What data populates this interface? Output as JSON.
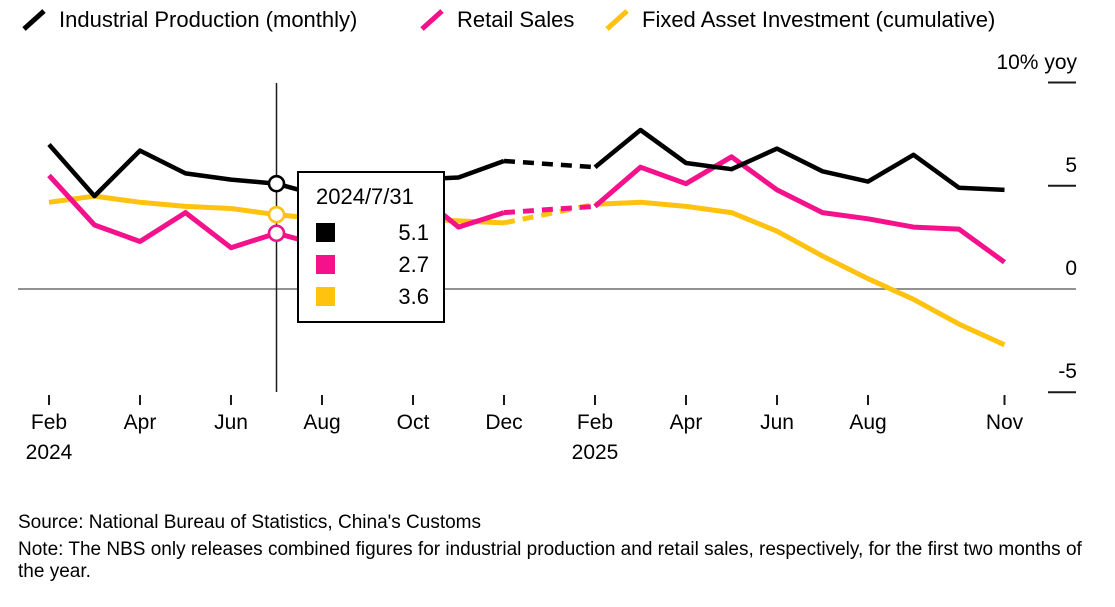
{
  "legend": {
    "items": [
      {
        "label": "Industrial Production (monthly)",
        "color": "#000000"
      },
      {
        "label": "Retail Sales",
        "color": "#f4118b"
      },
      {
        "label": "Fixed Asset Investment (cumulative)",
        "color": "#ffc20e"
      }
    ]
  },
  "tooltip": {
    "date": "2024/7/31",
    "rows": [
      {
        "series": "Industrial Production (monthly)",
        "color": "#000000",
        "value": "5.1"
      },
      {
        "series": "Retail Sales",
        "color": "#f4118b",
        "value": "2.7"
      },
      {
        "series": "Fixed Asset Investment (cumulative)",
        "color": "#ffc20e",
        "value": "3.6"
      }
    ]
  },
  "footer": {
    "source": "Source: National Bureau of Statistics, China's Customs",
    "note": "Note: The NBS only releases combined figures for industrial production and retail sales, respectively, for the first two months of the year."
  },
  "chart_data": {
    "type": "line",
    "title": "",
    "unit_label": "10% yoy",
    "legend_position": "top",
    "grid": false,
    "ylim": [
      -6.5,
      10.5
    ],
    "x": [
      "2024-02",
      "2024-03",
      "2024-04",
      "2024-05",
      "2024-06",
      "2024-07",
      "2024-08",
      "2024-09",
      "2024-10",
      "2024-11",
      "2024-12",
      "2025-02",
      "2025-03",
      "2025-04",
      "2025-05",
      "2025-06",
      "2025-07",
      "2025-08",
      "2025-09",
      "2025-10",
      "2025-11"
    ],
    "series": [
      {
        "name": "Industrial Production (monthly)",
        "color": "#000000",
        "values": [
          7.0,
          4.5,
          6.7,
          5.6,
          5.3,
          5.1,
          4.5,
          5.4,
          5.3,
          5.4,
          6.2,
          5.9,
          7.7,
          6.1,
          5.8,
          6.8,
          5.7,
          5.2,
          6.5,
          4.9,
          4.8
        ]
      },
      {
        "name": "Retail Sales",
        "color": "#f4118b",
        "values": [
          5.5,
          3.1,
          2.3,
          3.7,
          2.0,
          2.7,
          2.1,
          3.2,
          4.8,
          3.0,
          3.7,
          4.0,
          5.9,
          5.1,
          6.4,
          4.8,
          3.7,
          3.4,
          3.0,
          2.9,
          1.3
        ]
      },
      {
        "name": "Fixed Asset Investment (cumulative)",
        "color": "#ffc20e",
        "values": [
          4.2,
          4.5,
          4.2,
          4.0,
          3.9,
          3.6,
          3.4,
          3.4,
          3.4,
          3.3,
          3.2,
          4.1,
          4.2,
          4.0,
          3.7,
          2.8,
          1.6,
          0.5,
          -0.5,
          -1.7,
          -2.7
        ]
      }
    ],
    "dashed_segment": {
      "from": "2024-12",
      "to": "2025-02",
      "reason": "no separate January release"
    },
    "highlight": {
      "date": "2024/7/31",
      "month": "2024-07",
      "values": [
        5.1,
        2.7,
        3.6
      ]
    },
    "y_ticks": [
      {
        "value": 10,
        "label": "10% yoy"
      },
      {
        "value": 5,
        "label": "5"
      },
      {
        "value": 0,
        "label": "0"
      },
      {
        "value": -5,
        "label": "-5"
      }
    ],
    "x_ticks": [
      {
        "month": "2024-02",
        "label": "Feb",
        "year": "2024"
      },
      {
        "month": "2024-04",
        "label": "Apr"
      },
      {
        "month": "2024-06",
        "label": "Jun"
      },
      {
        "month": "2024-08",
        "label": "Aug"
      },
      {
        "month": "2024-10",
        "label": "Oct"
      },
      {
        "month": "2024-12",
        "label": "Dec"
      },
      {
        "month": "2025-02",
        "label": "Feb",
        "year": "2025"
      },
      {
        "month": "2025-04",
        "label": "Apr"
      },
      {
        "month": "2025-06",
        "label": "Jun"
      },
      {
        "month": "2025-08",
        "label": "Aug"
      },
      {
        "month": "2025-11",
        "label": "Nov"
      }
    ]
  }
}
